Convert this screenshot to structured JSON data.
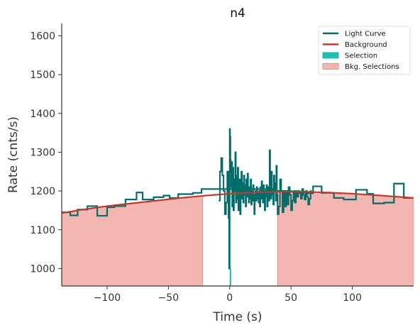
{
  "chart_data": {
    "type": "line",
    "title": "n4",
    "xlabel": "Time (s)",
    "ylabel": "Rate (cnts/s)",
    "xlim": [
      -137,
      150
    ],
    "ylim": [
      955,
      1632
    ],
    "xticks": [
      -100,
      -50,
      0,
      50,
      100
    ],
    "yticks": [
      1000,
      1100,
      1200,
      1300,
      1400,
      1500,
      1600
    ],
    "grid": false,
    "legend_position": "top-right",
    "colors": {
      "light_curve": "#006d6b",
      "background": "#c0392b",
      "selection": "#1bbfae",
      "bkg_selection": "#f4b6b0"
    },
    "legend": [
      {
        "label": "Light Curve",
        "kind": "line",
        "color": "#006d6b"
      },
      {
        "label": "Background",
        "kind": "line",
        "color": "#c0392b"
      },
      {
        "label": "Selection",
        "kind": "patch",
        "color": "#1bbfae"
      },
      {
        "label": "Bkg. Selections",
        "kind": "patch",
        "color": "#f4b6b0"
      }
    ],
    "background_fit": {
      "x": [
        -137,
        -120,
        -100,
        -80,
        -60,
        -40,
        -20,
        0,
        20,
        40,
        60,
        80,
        100,
        120,
        150
      ],
      "y": [
        1143,
        1152,
        1161,
        1168,
        1175,
        1182,
        1188,
        1193,
        1196,
        1198,
        1198,
        1196,
        1193,
        1189,
        1182
      ]
    },
    "bkg_selections": [
      [
        -137,
        -22
      ],
      [
        39,
        150
      ]
    ],
    "selection": [
      0,
      1.2
    ],
    "light_curve": {
      "step_x": [
        -137,
        -130,
        -124,
        -116,
        -108,
        -100,
        -94,
        -85,
        -76,
        -71,
        -62,
        -54,
        -49,
        -42,
        -30,
        -23,
        -13,
        39,
        50,
        58,
        63,
        68,
        75,
        85,
        93,
        103,
        112,
        117,
        126,
        134,
        142,
        150
      ],
      "step_y": [
        1145,
        1137,
        1152,
        1161,
        1136,
        1158,
        1161,
        1178,
        1196,
        1178,
        1184,
        1188,
        1182,
        1192,
        1195,
        1205,
        1205,
        1200,
        1198,
        1196,
        1194,
        1212,
        1195,
        1182,
        1178,
        1203,
        1193,
        1168,
        1170,
        1219,
        1182,
        1200
      ],
      "burst_x": [
        -9,
        -8,
        -7,
        -6,
        -5,
        -4,
        -3,
        -2,
        -1,
        -0.5,
        0,
        0.3,
        0.6,
        0.9,
        1.2,
        1.5,
        2,
        2.5,
        3,
        3.5,
        4,
        4.5,
        5,
        5.5,
        6,
        6.5,
        7,
        7.5,
        8,
        8.5,
        9,
        9.5,
        10,
        10.5,
        11,
        11.5,
        12,
        12.5,
        13,
        13.5,
        14,
        14.5,
        15,
        15.5,
        16,
        16.5,
        17,
        17.5,
        18,
        18.5,
        19,
        19.5,
        20,
        20.5,
        21,
        21.5,
        22,
        22.5,
        23,
        23.5,
        24,
        24.5,
        25,
        25.5,
        26,
        26.5,
        27,
        27.5,
        28,
        28.5,
        29,
        29.5,
        30,
        30.5,
        31,
        31.5,
        32,
        32.5,
        33,
        33.5,
        34,
        34.5,
        35,
        35.5,
        36,
        36.5,
        37,
        37.5,
        38,
        38.5,
        39,
        40,
        41,
        42,
        43,
        44,
        45,
        46,
        47,
        48,
        49,
        50,
        51,
        52,
        53,
        54,
        55,
        56,
        57,
        58,
        59,
        60,
        61,
        62,
        63,
        64,
        65,
        66,
        67
      ],
      "burst_y": [
        1175,
        1250,
        1285,
        1240,
        1200,
        1140,
        1170,
        1250,
        1130,
        1000,
        1360,
        1340,
        1280,
        1250,
        1210,
        1275,
        1160,
        1260,
        1150,
        1230,
        1200,
        1300,
        1170,
        1240,
        1180,
        1260,
        1150,
        1200,
        1230,
        1140,
        1210,
        1250,
        1180,
        1220,
        1170,
        1240,
        1190,
        1215,
        1160,
        1230,
        1185,
        1245,
        1200,
        1170,
        1210,
        1180,
        1230,
        1165,
        1200,
        1175,
        1215,
        1190,
        1140,
        1190,
        1200,
        1175,
        1210,
        1180,
        1195,
        1170,
        1200,
        1160,
        1210,
        1180,
        1225,
        1200,
        1170,
        1215,
        1190,
        1150,
        1200,
        1185,
        1215,
        1160,
        1195,
        1210,
        1175,
        1305,
        1200,
        1180,
        1250,
        1190,
        1205,
        1165,
        1240,
        1200,
        1220,
        1175,
        1265,
        1190,
        1140,
        1160,
        1230,
        1200,
        1145,
        1200,
        1160,
        1200,
        1165,
        1210,
        1190,
        1150,
        1175,
        1200,
        1170,
        1200,
        1185,
        1200,
        1195,
        1180,
        1205,
        1190,
        1178,
        1200,
        1185,
        1165,
        1180,
        1200,
        1190,
        1170
      ]
    }
  }
}
